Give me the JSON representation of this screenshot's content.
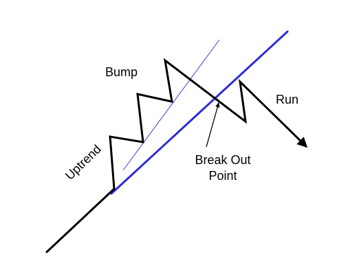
{
  "diagram": {
    "labels": {
      "bump": "Bump",
      "uptrend": "Uptrend",
      "break_out_line1": "Break Out",
      "break_out_line2": "Point",
      "run": "Run"
    },
    "colors": {
      "price_line": "#000000",
      "trend_line": "#2b2bd9",
      "thin_trend_line": "#3a3ad6",
      "text": "#000000",
      "background": "#ffffff"
    }
  }
}
